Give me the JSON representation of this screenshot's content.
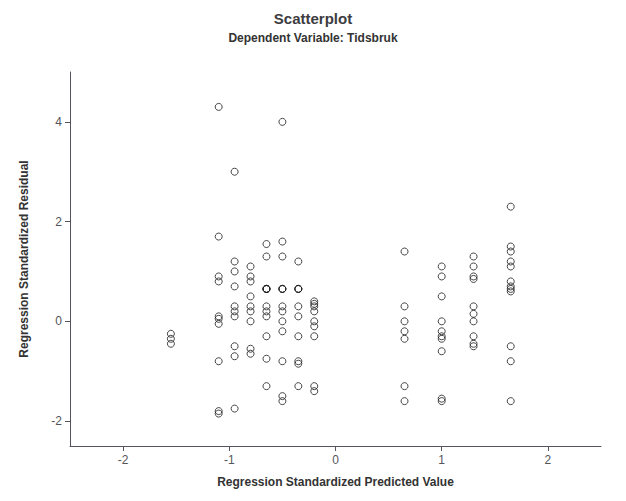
{
  "chart_data": {
    "type": "scatter",
    "title": "Scatterplot",
    "subtitle": "Dependent Variable: Tidsbruk",
    "xlabel": "Regression Standardized Predicted Value",
    "ylabel": "Regression Standardized Residual",
    "color": "#1a1a1a",
    "xlim": [
      -2.5,
      2.5
    ],
    "ylim": [
      -2.5,
      5.0
    ],
    "xticks": [
      -2,
      -1,
      0,
      1,
      2
    ],
    "yticks": [
      -2,
      0,
      2,
      4
    ],
    "grid": false,
    "x": [
      -1.55,
      -1.55,
      -1.55,
      -1.1,
      -1.1,
      -1.1,
      -1.1,
      -1.1,
      -1.1,
      -1.1,
      -1.1,
      -1.1,
      -0.95,
      -0.95,
      -0.95,
      -0.95,
      -0.95,
      -0.95,
      -0.95,
      -0.95,
      -0.95,
      -0.95,
      -0.8,
      -0.8,
      -0.8,
      -0.8,
      -0.8,
      -0.8,
      -0.8,
      -0.8,
      -0.8,
      -0.65,
      -0.65,
      -0.65,
      -0.65,
      -0.65,
      -0.65,
      -0.65,
      -0.65,
      -0.65,
      -0.65,
      -0.65,
      -0.5,
      -0.5,
      -0.5,
      -0.5,
      -0.5,
      -0.5,
      -0.5,
      -0.5,
      -0.5,
      -0.5,
      -0.5,
      -0.5,
      -0.35,
      -0.35,
      -0.35,
      -0.35,
      -0.35,
      -0.35,
      -0.35,
      -0.35,
      -0.35,
      -0.35,
      -0.2,
      -0.2,
      -0.2,
      -0.2,
      -0.2,
      -0.2,
      -0.2,
      -0.2,
      -0.2,
      0.65,
      0.65,
      0.65,
      0.65,
      0.65,
      0.65,
      0.65,
      1.0,
      1.0,
      1.0,
      1.0,
      1.0,
      1.0,
      1.0,
      1.0,
      1.0,
      1.0,
      1.3,
      1.3,
      1.3,
      1.3,
      1.3,
      1.3,
      1.3,
      1.3,
      1.3,
      1.3,
      1.65,
      1.65,
      1.65,
      1.65,
      1.65,
      1.65,
      1.65,
      1.65,
      1.65,
      1.65,
      1.65,
      1.65,
      -1.1,
      -0.65,
      -0.5
    ],
    "values": [
      -0.25,
      -0.35,
      -0.45,
      4.3,
      1.7,
      0.9,
      0.8,
      0.1,
      0.05,
      -0.05,
      -0.8,
      -1.8,
      3.0,
      1.2,
      1.0,
      0.7,
      0.3,
      0.2,
      0.1,
      -0.5,
      -0.7,
      -1.75,
      1.1,
      0.9,
      0.8,
      0.5,
      0.3,
      0.2,
      0.0,
      -0.55,
      -0.65,
      1.55,
      1.3,
      0.65,
      0.65,
      0.65,
      0.65,
      0.3,
      0.2,
      0.1,
      -0.3,
      -0.75,
      4.0,
      1.6,
      1.3,
      0.65,
      0.65,
      0.65,
      0.3,
      0.2,
      0.0,
      -0.2,
      -0.8,
      -1.5,
      1.2,
      0.65,
      0.65,
      0.65,
      0.3,
      0.1,
      -0.3,
      -0.8,
      -0.85,
      -1.3,
      0.4,
      0.35,
      0.3,
      0.2,
      0.0,
      -0.1,
      -0.3,
      -1.3,
      -1.4,
      1.4,
      0.3,
      0.0,
      -0.2,
      -0.35,
      -1.3,
      -1.6,
      1.1,
      0.9,
      0.5,
      0.0,
      -0.2,
      -0.3,
      -0.35,
      -0.6,
      -1.55,
      -1.6,
      1.3,
      1.1,
      0.9,
      0.85,
      0.3,
      0.15,
      0.0,
      -0.3,
      -0.45,
      -0.5,
      2.3,
      1.5,
      1.4,
      1.2,
      1.1,
      0.8,
      0.7,
      0.65,
      0.6,
      -0.5,
      -0.8,
      -1.6,
      -1.85,
      -1.3,
      -1.6
    ]
  }
}
